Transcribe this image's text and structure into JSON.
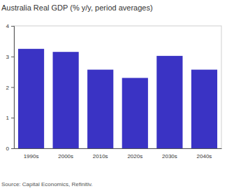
{
  "chart_data": {
    "type": "bar",
    "title": "Australia Real GDP (% y/y, period averages)",
    "categories": [
      "1990s",
      "2000s",
      "2010s",
      "2020s",
      "2030s",
      "2040s"
    ],
    "values": [
      3.25,
      3.15,
      2.57,
      2.3,
      3.02,
      2.57
    ],
    "color": "#3a33c4",
    "ylim": [
      0,
      4
    ],
    "yticks": [
      0,
      1,
      2,
      3,
      4
    ],
    "source": "Source: Capital Economics, Refinitiv."
  }
}
